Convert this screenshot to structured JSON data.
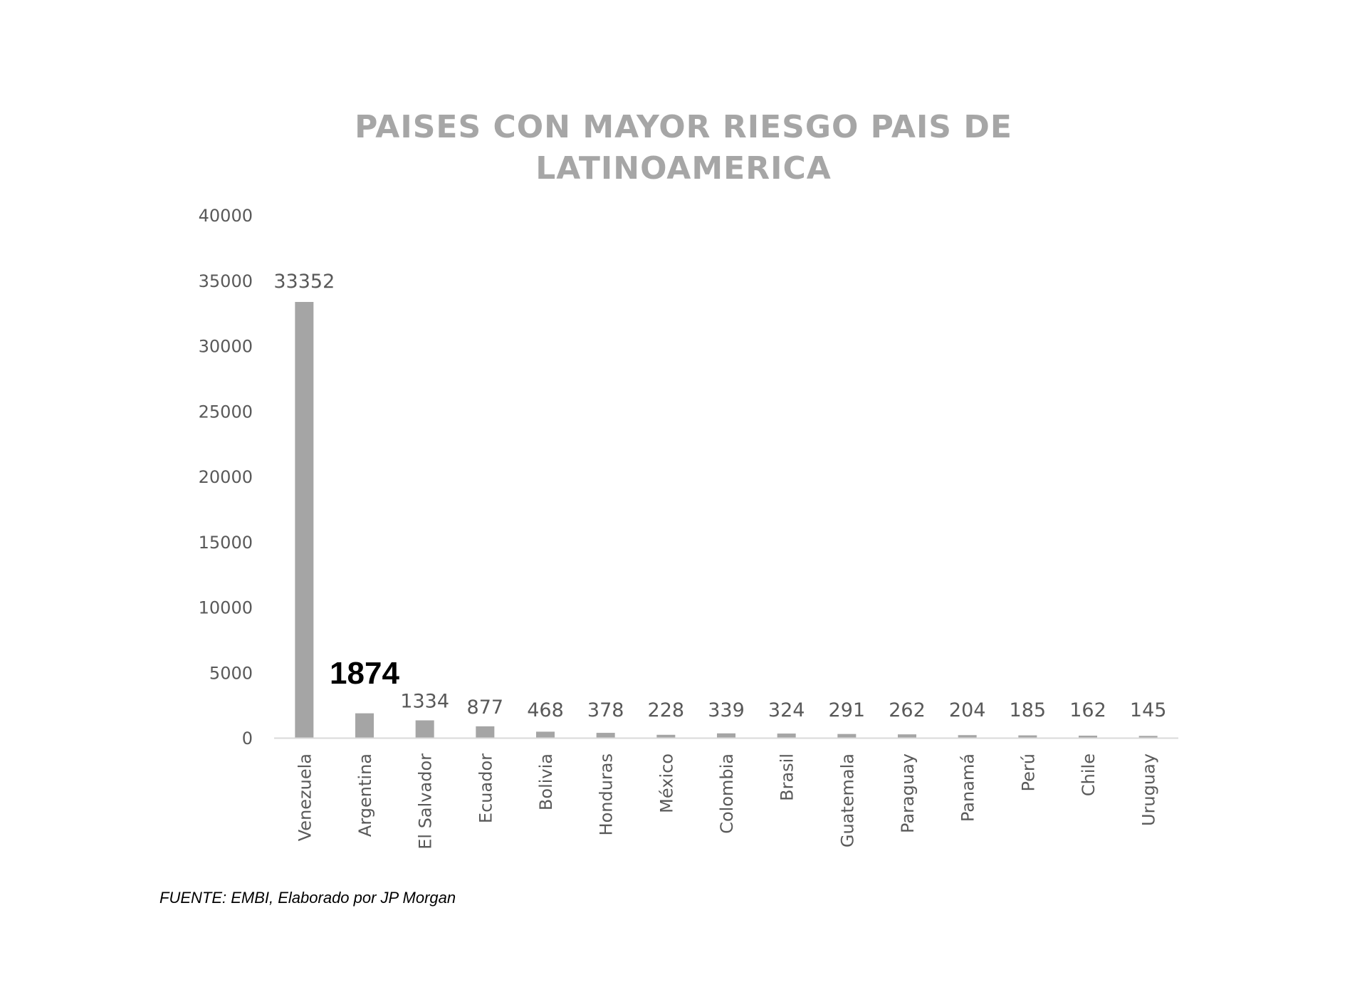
{
  "chart_data": {
    "type": "bar",
    "title_line1": "PAISES CON MAYOR RIESGO PAIS DE",
    "title_line2": "LATINOAMERICA",
    "xlabel": "",
    "ylabel": "",
    "ylim": [
      0,
      40000
    ],
    "yticks": [
      "0",
      "5000",
      "10000",
      "15000",
      "20000",
      "25000",
      "30000",
      "35000",
      "40000"
    ],
    "categories": [
      "Venezuela",
      "Argentina",
      "El Salvador",
      "Ecuador",
      "Bolivia",
      "Honduras",
      "México",
      "Colombia",
      "Brasil",
      "Guatemala",
      "Paraguay",
      "Panamá",
      "Perú",
      "Chile",
      "Uruguay"
    ],
    "values": [
      33352,
      1874,
      1334,
      877,
      468,
      378,
      228,
      339,
      324,
      291,
      262,
      204,
      185,
      162,
      145
    ],
    "value_labels": [
      "33352",
      "1874",
      "1334",
      "877",
      "468",
      "378",
      "228",
      "339",
      "324",
      "291",
      "262",
      "204",
      "185",
      "162",
      "145"
    ],
    "grid": false,
    "legend": "none",
    "bar_color": "#a5a5a5",
    "axis_color": "#d9d9d9",
    "label_color": "#595959",
    "highlight_label_color": "#000000"
  },
  "source_note": "FUENTE: EMBI, Elaborado por JP Morgan"
}
